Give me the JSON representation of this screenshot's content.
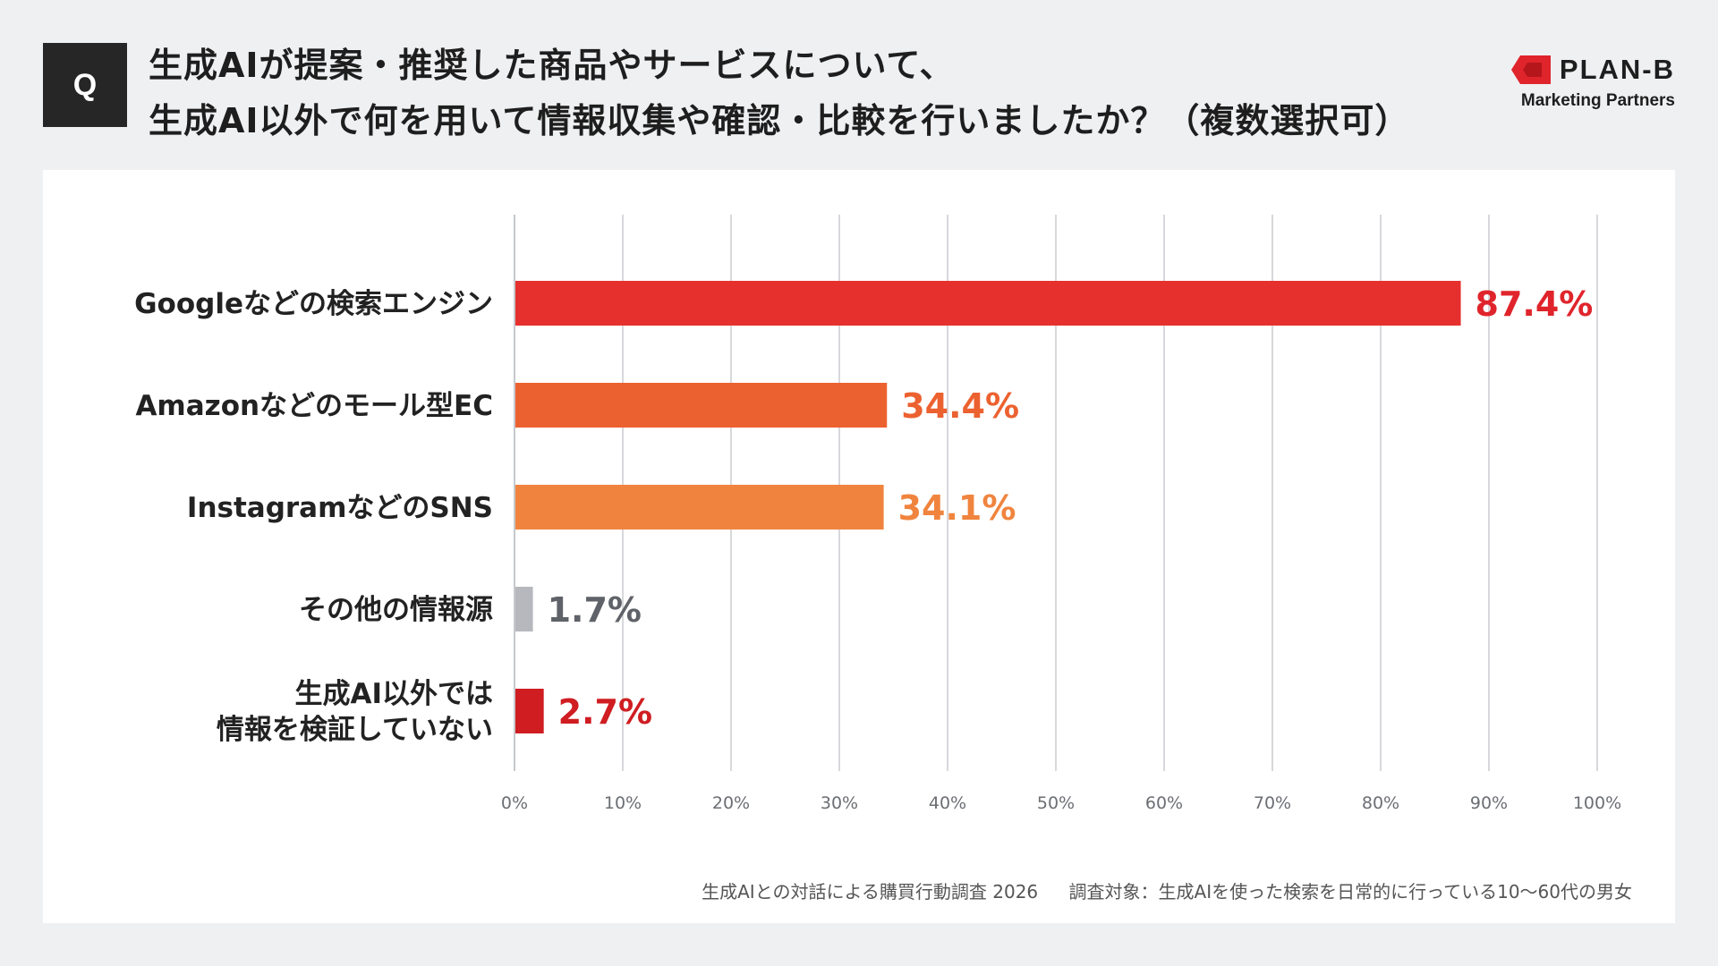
{
  "badge": "Q",
  "question": {
    "line1": "生成AIが提案・推奨した商品やサービスについて、",
    "line2": "生成AI以外で何を用いて情報収集や確認・比較を行いましたか？（複数選択可）"
  },
  "brand": {
    "name": "PLAN-B",
    "tagline": "Marketing Partners",
    "logo_color": "#e0242b"
  },
  "chart_data": {
    "type": "bar",
    "orientation": "horizontal",
    "categories": [
      [
        "Googleなどの検索エンジン"
      ],
      [
        "Amazonなどのモール型EC"
      ],
      [
        "InstagramなどのSNS"
      ],
      [
        "その他の情報源"
      ],
      [
        "生成AI以外では",
        "情報を検証していない"
      ]
    ],
    "values": [
      87.4,
      34.4,
      34.1,
      1.7,
      2.7
    ],
    "value_labels": [
      "87.4%",
      "34.4%",
      "34.1%",
      "1.7%",
      "2.7%"
    ],
    "colors": [
      "#e5302e",
      "#ec6130",
      "#f0843e",
      "#b6b8bd",
      "#cf1d22"
    ],
    "label_colors": [
      "#e0242b",
      "#ec6130",
      "#f0843e",
      "#5f6268",
      "#cf1d22"
    ],
    "xlim": [
      0,
      100
    ],
    "x_ticks": [
      "0%",
      "10%",
      "20%",
      "30%",
      "40%",
      "50%",
      "60%",
      "70%",
      "80%",
      "90%",
      "100%"
    ],
    "grid": true,
    "title": "",
    "xlabel": "",
    "ylabel": ""
  },
  "footer": {
    "source": "生成AIとの対話による購買行動調査 2026",
    "target": "調査対象：生成AIを使った検索を日常的に行っている10〜60代の男女"
  }
}
